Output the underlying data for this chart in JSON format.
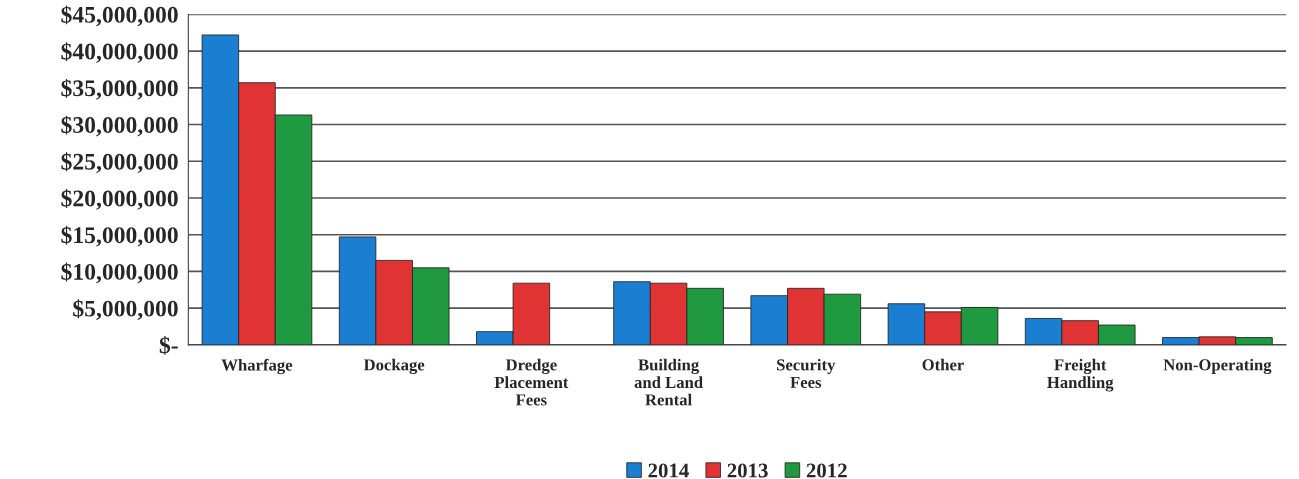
{
  "chart_data": {
    "type": "bar",
    "categories": [
      "Wharfage",
      "Dockage",
      "Dredge\nPlacement\nFees",
      "Building\nand Land\nRental",
      "Security\nFees",
      "Other",
      "Freight\nHandling",
      "Non-Operating"
    ],
    "series": [
      {
        "name": "2014",
        "color": "#1b7fd1",
        "values": [
          42200000,
          14700000,
          1800000,
          8600000,
          6700000,
          5600000,
          3600000,
          1000000
        ]
      },
      {
        "name": "2013",
        "color": "#e03434",
        "values": [
          35700000,
          11500000,
          8400000,
          8400000,
          7700000,
          4500000,
          3300000,
          1100000
        ]
      },
      {
        "name": "2012",
        "color": "#1f9a40",
        "values": [
          31300000,
          10500000,
          null,
          7700000,
          6900000,
          5100000,
          2700000,
          1000000
        ]
      }
    ],
    "ylim": [
      0,
      45000000
    ],
    "yticks": [
      {
        "value": 0,
        "label": "$-"
      },
      {
        "value": 5000000,
        "label": "$5,000,000"
      },
      {
        "value": 10000000,
        "label": "$10,000,000"
      },
      {
        "value": 15000000,
        "label": "$15,000,000"
      },
      {
        "value": 20000000,
        "label": "$20,000,000"
      },
      {
        "value": 25000000,
        "label": "$25,000,000"
      },
      {
        "value": 30000000,
        "label": "$30,000,000"
      },
      {
        "value": 35000000,
        "label": "$35,000,000"
      },
      {
        "value": 40000000,
        "label": "$40,000,000"
      },
      {
        "value": 45000000,
        "label": "$45,000,000"
      }
    ],
    "grid": "y",
    "legend": "bottom"
  }
}
